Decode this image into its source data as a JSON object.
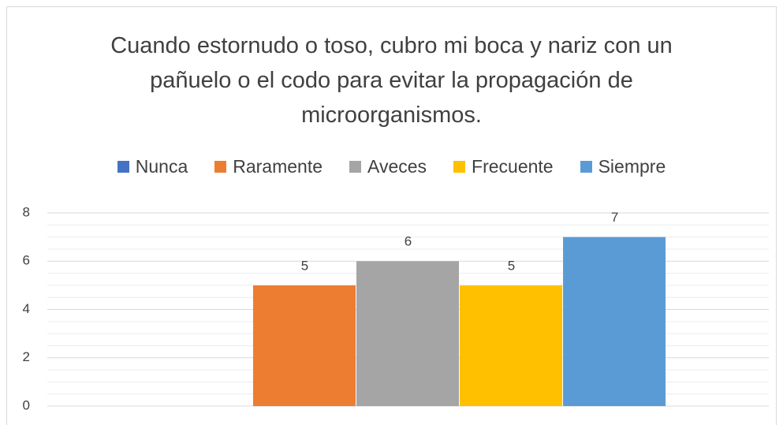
{
  "chart_data": {
    "type": "bar",
    "title": "Cuando estornudo o toso, cubro mi boca y nariz con un pañuelo o el codo para evitar la propagación de microorganismos.",
    "categories": [
      null
    ],
    "series": [
      {
        "name": "Nunca",
        "color": "#4472c4",
        "values": [
          null
        ]
      },
      {
        "name": "Raramente",
        "color": "#ed7d31",
        "values": [
          5
        ]
      },
      {
        "name": "Aveces",
        "color": "#a5a5a5",
        "values": [
          6
        ]
      },
      {
        "name": "Frecuente",
        "color": "#ffc000",
        "values": [
          5
        ]
      },
      {
        "name": "Siempre",
        "color": "#5b9bd5",
        "values": [
          7
        ]
      }
    ],
    "ylim": [
      0,
      8
    ],
    "yticks": [
      0,
      2,
      4,
      6,
      8
    ],
    "yminor_ticks": [
      0.5,
      1,
      1.5,
      2.5,
      3,
      3.5,
      4.5,
      5,
      5.5,
      6.5,
      7,
      7.5
    ],
    "grid": true,
    "legend": "top"
  }
}
